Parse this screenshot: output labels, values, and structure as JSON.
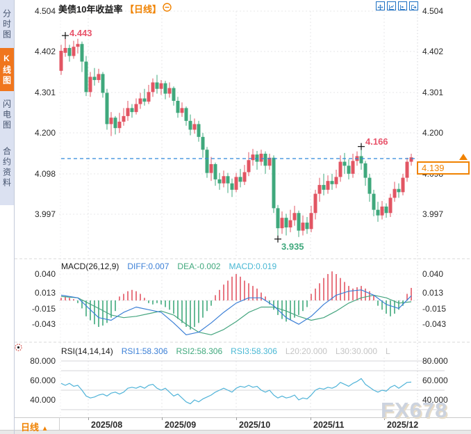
{
  "sidebar": {
    "tabs": [
      {
        "label": "分时图",
        "active": false
      },
      {
        "label": "K线图",
        "active": true
      },
      {
        "label": "闪电图",
        "active": false
      },
      {
        "label": "合约资料",
        "active": false
      }
    ]
  },
  "header": {
    "title": "美债10年收益率",
    "period": "【日线】"
  },
  "toolbar": {
    "icons": [
      "crosshair-move",
      "fit-axis",
      "auto-scroll",
      "pan-right"
    ]
  },
  "main_chart": {
    "y_labels": [
      "4.504",
      "4.402",
      "4.301",
      "4.200",
      "4.098",
      "3.997"
    ],
    "annotations": {
      "high": "4.443",
      "swing_high": "4.166",
      "low": "3.935"
    },
    "price_tag": "4.139",
    "candles": [
      [
        4.355,
        4.42,
        4.345,
        4.405
      ],
      [
        4.4,
        4.443,
        4.39,
        4.412
      ],
      [
        4.412,
        4.42,
        4.378,
        4.392
      ],
      [
        4.392,
        4.43,
        4.385,
        4.415
      ],
      [
        4.415,
        4.435,
        4.398,
        4.422
      ],
      [
        4.422,
        4.428,
        4.352,
        4.378
      ],
      [
        4.378,
        4.392,
        4.292,
        4.302
      ],
      [
        4.302,
        4.352,
        4.29,
        4.34
      ],
      [
        4.34,
        4.362,
        4.318,
        4.332
      ],
      [
        4.332,
        4.36,
        4.325,
        4.347
      ],
      [
        4.347,
        4.352,
        4.288,
        4.3
      ],
      [
        4.3,
        4.31,
        4.208,
        4.222
      ],
      [
        4.222,
        4.252,
        4.192,
        4.238
      ],
      [
        4.238,
        4.242,
        4.196,
        4.212
      ],
      [
        4.212,
        4.25,
        4.2,
        4.228
      ],
      [
        4.228,
        4.262,
        4.218,
        4.242
      ],
      [
        4.242,
        4.28,
        4.23,
        4.262
      ],
      [
        4.262,
        4.272,
        4.238,
        4.252
      ],
      [
        4.252,
        4.286,
        4.246,
        4.272
      ],
      [
        4.272,
        4.3,
        4.26,
        4.286
      ],
      [
        4.286,
        4.31,
        4.268,
        4.278
      ],
      [
        4.278,
        4.32,
        4.272,
        4.302
      ],
      [
        4.302,
        4.336,
        4.29,
        4.326
      ],
      [
        4.326,
        4.345,
        4.298,
        4.31
      ],
      [
        4.31,
        4.332,
        4.295,
        4.324
      ],
      [
        4.324,
        4.33,
        4.284,
        4.298
      ],
      [
        4.298,
        4.326,
        4.288,
        4.312
      ],
      [
        4.312,
        4.316,
        4.268,
        4.28
      ],
      [
        4.28,
        4.29,
        4.238,
        4.25
      ],
      [
        4.25,
        4.276,
        4.24,
        4.262
      ],
      [
        4.262,
        4.266,
        4.218,
        4.23
      ],
      [
        4.23,
        4.246,
        4.194,
        4.208
      ],
      [
        4.208,
        4.236,
        4.198,
        4.222
      ],
      [
        4.222,
        4.23,
        4.178,
        4.19
      ],
      [
        4.19,
        4.2,
        4.138,
        4.158
      ],
      [
        4.158,
        4.165,
        4.088,
        4.1
      ],
      [
        4.1,
        4.14,
        4.08,
        4.122
      ],
      [
        4.122,
        4.126,
        4.068,
        4.084
      ],
      [
        4.084,
        4.1,
        4.058,
        4.074
      ],
      [
        4.074,
        4.106,
        4.064,
        4.092
      ],
      [
        4.092,
        4.1,
        4.05,
        4.074
      ],
      [
        4.074,
        4.086,
        4.04,
        4.058
      ],
      [
        4.058,
        4.1,
        4.052,
        4.09
      ],
      [
        4.09,
        4.11,
        4.064,
        4.078
      ],
      [
        4.078,
        4.12,
        4.07,
        4.102
      ],
      [
        4.102,
        4.152,
        4.092,
        4.132
      ],
      [
        4.132,
        4.16,
        4.118,
        4.146
      ],
      [
        4.146,
        4.155,
        4.108,
        4.128
      ],
      [
        4.128,
        4.158,
        4.118,
        4.148
      ],
      [
        4.148,
        4.154,
        4.098,
        4.118
      ],
      [
        4.118,
        4.148,
        4.108,
        4.138
      ],
      [
        4.138,
        4.144,
        4.0,
        4.012
      ],
      [
        4.012,
        4.02,
        3.935,
        3.962
      ],
      [
        3.962,
        4.004,
        3.948,
        3.988
      ],
      [
        3.988,
        3.998,
        3.944,
        3.964
      ],
      [
        3.964,
        4.008,
        3.952,
        3.982
      ],
      [
        3.982,
        4.018,
        3.968,
        4.0
      ],
      [
        4.0,
        4.006,
        3.94,
        3.956
      ],
      [
        3.956,
        3.994,
        3.944,
        3.976
      ],
      [
        3.976,
        3.99,
        3.948,
        3.96
      ],
      [
        3.96,
        4.018,
        3.952,
        4.0
      ],
      [
        4.0,
        4.058,
        3.984,
        4.048
      ],
      [
        4.048,
        4.088,
        4.028,
        4.07
      ],
      [
        4.07,
        4.098,
        4.044,
        4.058
      ],
      [
        4.058,
        4.094,
        4.048,
        4.08
      ],
      [
        4.08,
        4.098,
        4.058,
        4.072
      ],
      [
        4.072,
        4.108,
        4.062,
        4.09
      ],
      [
        4.09,
        4.144,
        4.078,
        4.128
      ],
      [
        4.128,
        4.15,
        4.098,
        4.118
      ],
      [
        4.118,
        4.134,
        4.084,
        4.098
      ],
      [
        4.098,
        4.148,
        4.088,
        4.13
      ],
      [
        4.13,
        4.154,
        4.118,
        4.142
      ],
      [
        4.142,
        4.166,
        4.108,
        4.124
      ],
      [
        4.124,
        4.13,
        4.068,
        4.088
      ],
      [
        4.088,
        4.098,
        4.028,
        4.048
      ],
      [
        4.048,
        4.058,
        3.992,
        4.008
      ],
      [
        4.008,
        4.028,
        3.978,
        3.994
      ],
      [
        3.994,
        4.03,
        3.984,
        4.016
      ],
      [
        4.016,
        4.024,
        3.988,
        4.0
      ],
      [
        4.0,
        4.048,
        3.99,
        4.038
      ],
      [
        4.038,
        4.078,
        4.028,
        4.06
      ],
      [
        4.06,
        4.074,
        4.038,
        4.052
      ],
      [
        4.052,
        4.098,
        4.044,
        4.088
      ],
      [
        4.088,
        4.138,
        4.078,
        4.128
      ],
      [
        4.128,
        4.148,
        4.118,
        4.139
      ]
    ]
  },
  "macd": {
    "title": "MACD(26,12,9)",
    "diff": "DIFF:0.007",
    "dea": "DEA:-0.002",
    "macd": "MACD:0.019",
    "y_labels": [
      "0.040",
      "0.013",
      "-0.015",
      "-0.043"
    ],
    "hist": [
      0.004,
      0.006,
      0.004,
      0.002,
      -0.004,
      -0.012,
      -0.024,
      -0.03,
      -0.036,
      -0.04,
      -0.038,
      -0.034,
      -0.026,
      -0.016,
      0.006,
      0.01,
      0.014,
      0.016,
      0.014,
      0.01,
      0.004,
      -0.004,
      -0.006,
      -0.004,
      -0.006,
      -0.01,
      -0.014,
      -0.02,
      -0.028,
      -0.034,
      -0.04,
      -0.044,
      -0.04,
      -0.034,
      -0.026,
      -0.016,
      -0.008,
      0.008,
      0.016,
      0.024,
      0.03,
      0.036,
      0.04,
      0.036,
      0.03,
      0.026,
      0.022,
      0.018,
      0.012,
      0.006,
      -0.006,
      -0.014,
      -0.022,
      -0.028,
      -0.032,
      -0.03,
      -0.026,
      -0.022,
      -0.016,
      -0.01,
      0.01,
      0.018,
      0.026,
      0.034,
      0.04,
      0.044,
      0.04,
      0.034,
      0.028,
      0.022,
      0.018,
      0.02,
      0.022,
      0.018,
      0.014,
      0.008,
      -0.008,
      -0.014,
      -0.02,
      -0.024,
      -0.02,
      -0.014,
      -0.008,
      0.01,
      0.019
    ],
    "diff_points": [
      [
        0,
        0.008
      ],
      [
        4,
        0.004
      ],
      [
        9,
        -0.026
      ],
      [
        12,
        -0.03
      ],
      [
        15,
        -0.018
      ],
      [
        18,
        -0.01
      ],
      [
        21,
        -0.014
      ],
      [
        24,
        -0.018
      ],
      [
        27,
        -0.034
      ],
      [
        30,
        -0.052
      ],
      [
        33,
        -0.048
      ],
      [
        36,
        -0.034
      ],
      [
        39,
        -0.018
      ],
      [
        42,
        -0.004
      ],
      [
        45,
        0.004
      ],
      [
        48,
        0.004
      ],
      [
        51,
        -0.008
      ],
      [
        54,
        -0.026
      ],
      [
        57,
        -0.036
      ],
      [
        60,
        -0.024
      ],
      [
        63,
        -0.006
      ],
      [
        66,
        0.008
      ],
      [
        69,
        0.014
      ],
      [
        72,
        0.016
      ],
      [
        75,
        0.008
      ],
      [
        78,
        -0.006
      ],
      [
        81,
        -0.012
      ],
      [
        84,
        0.007
      ]
    ],
    "dea_points": [
      [
        0,
        0.006
      ],
      [
        4,
        0.004
      ],
      [
        9,
        -0.012
      ],
      [
        12,
        -0.022
      ],
      [
        15,
        -0.026
      ],
      [
        18,
        -0.024
      ],
      [
        21,
        -0.02
      ],
      [
        24,
        -0.016
      ],
      [
        27,
        -0.022
      ],
      [
        30,
        -0.036
      ],
      [
        33,
        -0.048
      ],
      [
        36,
        -0.052
      ],
      [
        39,
        -0.044
      ],
      [
        42,
        -0.032
      ],
      [
        45,
        -0.018
      ],
      [
        48,
        -0.01
      ],
      [
        51,
        -0.01
      ],
      [
        54,
        -0.016
      ],
      [
        57,
        -0.024
      ],
      [
        60,
        -0.03
      ],
      [
        63,
        -0.026
      ],
      [
        66,
        -0.016
      ],
      [
        69,
        -0.004
      ],
      [
        72,
        0.004
      ],
      [
        75,
        0.008
      ],
      [
        78,
        0.004
      ],
      [
        81,
        -0.004
      ],
      [
        84,
        -0.002
      ]
    ]
  },
  "rsi": {
    "title": "RSI(14,14,14)",
    "rsi1": "RSI1:58.306",
    "rsi2": "RSI2:58.306",
    "rsi3": "RSI3:58.306",
    "l20": "L20:20.000",
    "l30": "L30:30.000",
    "more": "L",
    "y_labels": [
      "80.000",
      "60.000",
      "40.000"
    ],
    "values": [
      57,
      55,
      57,
      54,
      55,
      50,
      44,
      42,
      43,
      45,
      46,
      44,
      47,
      48,
      46,
      48,
      52,
      53,
      52,
      54,
      52,
      55,
      56,
      52,
      50,
      52,
      48,
      44,
      46,
      42,
      38,
      36,
      40,
      38,
      41,
      43,
      45,
      48,
      50,
      52,
      50,
      48,
      52,
      54,
      53,
      55,
      53,
      54,
      50,
      48,
      50,
      45,
      42,
      44,
      42,
      43,
      45,
      40,
      42,
      41,
      45,
      50,
      52,
      51,
      53,
      52,
      54,
      58,
      56,
      54,
      57,
      59,
      62,
      56,
      53,
      50,
      48,
      50,
      49,
      53,
      55,
      52,
      55,
      58,
      58.3
    ]
  },
  "x_axis": {
    "dates": [
      "2025/08",
      "2025/09",
      "2025/10",
      "2025/11",
      "2025/12"
    ]
  },
  "bottom": {
    "period": "日线",
    "arrow": "▲"
  },
  "watermark": "FX678",
  "colors": {
    "up": "#e25563",
    "down": "#3fa87c",
    "accent": "#f08200",
    "diff_line": "#3b7fd6",
    "dea_line": "#45a57f",
    "rsi_line": "#4fb3d8",
    "price_line": "#2f86d9",
    "grid": "#e7e7ea"
  }
}
